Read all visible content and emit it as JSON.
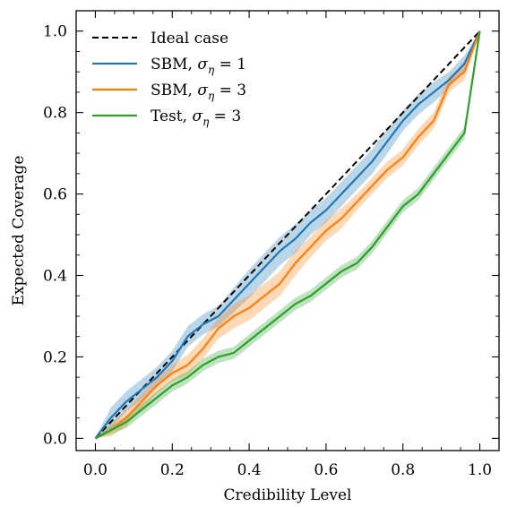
{
  "chart_data": {
    "type": "line",
    "title": "",
    "xlabel": "Credibility Level",
    "ylabel": "Expected Coverage",
    "xlim": [
      -0.05,
      1.05
    ],
    "ylim": [
      -0.03,
      1.05
    ],
    "xticks": [
      0.0,
      0.2,
      0.4,
      0.6,
      0.8,
      1.0
    ],
    "yticks": [
      0.0,
      0.2,
      0.4,
      0.6,
      0.8,
      1.0
    ],
    "xtick_labels": [
      "0.0",
      "0.2",
      "0.4",
      "0.6",
      "0.8",
      "1.0"
    ],
    "ytick_labels": [
      "0.0",
      "0.2",
      "0.4",
      "0.6",
      "0.8",
      "1.0"
    ],
    "grid": false,
    "legend_position": "top-left",
    "ideal": {
      "name": "Ideal case",
      "x": [
        0,
        1
      ],
      "y": [
        0,
        1
      ],
      "color": "#000000",
      "style": "dashed"
    },
    "series": [
      {
        "label_prefix": "SBM, ",
        "label_symbol": "σ",
        "label_sub": "η",
        "label_suffix": " = 1",
        "color": "#1f77b4",
        "x": [
          0,
          0.04,
          0.08,
          0.12,
          0.16,
          0.2,
          0.24,
          0.28,
          0.32,
          0.36,
          0.4,
          0.44,
          0.48,
          0.52,
          0.56,
          0.6,
          0.64,
          0.68,
          0.72,
          0.76,
          0.8,
          0.84,
          0.88,
          0.92,
          0.96,
          1.0
        ],
        "y": [
          0,
          0.05,
          0.09,
          0.12,
          0.15,
          0.19,
          0.25,
          0.28,
          0.3,
          0.34,
          0.38,
          0.42,
          0.46,
          0.49,
          0.53,
          0.56,
          0.6,
          0.64,
          0.68,
          0.73,
          0.78,
          0.82,
          0.85,
          0.88,
          0.92,
          1.0
        ],
        "band": [
          0,
          0.025,
          0.025,
          0.025,
          0.025,
          0.025,
          0.025,
          0.025,
          0.025,
          0.03,
          0.035,
          0.035,
          0.035,
          0.035,
          0.03,
          0.03,
          0.03,
          0.03,
          0.03,
          0.03,
          0.025,
          0.025,
          0.025,
          0.02,
          0.02,
          0
        ]
      },
      {
        "label_prefix": "SBM, ",
        "label_symbol": "σ",
        "label_sub": "η",
        "label_suffix": " = 3",
        "color": "#ff7f0e",
        "x": [
          0,
          0.04,
          0.08,
          0.12,
          0.16,
          0.2,
          0.24,
          0.28,
          0.32,
          0.36,
          0.4,
          0.44,
          0.48,
          0.52,
          0.56,
          0.6,
          0.64,
          0.68,
          0.72,
          0.76,
          0.8,
          0.84,
          0.88,
          0.92,
          0.96,
          1.0
        ],
        "y": [
          0,
          0.02,
          0.05,
          0.09,
          0.13,
          0.16,
          0.18,
          0.22,
          0.27,
          0.3,
          0.32,
          0.35,
          0.38,
          0.43,
          0.47,
          0.51,
          0.54,
          0.58,
          0.62,
          0.66,
          0.69,
          0.74,
          0.78,
          0.87,
          0.9,
          1.0
        ],
        "band": [
          0,
          0.015,
          0.02,
          0.02,
          0.02,
          0.02,
          0.025,
          0.025,
          0.025,
          0.03,
          0.03,
          0.03,
          0.03,
          0.03,
          0.025,
          0.025,
          0.025,
          0.02,
          0.02,
          0.02,
          0.02,
          0.02,
          0.02,
          0.02,
          0.02,
          0
        ]
      },
      {
        "label_prefix": "Test, ",
        "label_symbol": "σ",
        "label_sub": "η",
        "label_suffix": " = 3",
        "color": "#2ca02c",
        "x": [
          0,
          0.04,
          0.08,
          0.12,
          0.16,
          0.2,
          0.24,
          0.28,
          0.32,
          0.36,
          0.4,
          0.44,
          0.48,
          0.52,
          0.56,
          0.6,
          0.64,
          0.68,
          0.72,
          0.76,
          0.8,
          0.84,
          0.88,
          0.92,
          0.96,
          1.0
        ],
        "y": [
          0,
          0.02,
          0.04,
          0.07,
          0.1,
          0.13,
          0.15,
          0.18,
          0.2,
          0.21,
          0.24,
          0.27,
          0.3,
          0.33,
          0.35,
          0.38,
          0.41,
          0.43,
          0.47,
          0.52,
          0.57,
          0.6,
          0.65,
          0.7,
          0.75,
          1.0
        ],
        "band": [
          0,
          0.01,
          0.015,
          0.015,
          0.015,
          0.015,
          0.015,
          0.015,
          0.015,
          0.015,
          0.015,
          0.015,
          0.015,
          0.015,
          0.015,
          0.015,
          0.015,
          0.015,
          0.015,
          0.015,
          0.015,
          0.015,
          0.015,
          0.015,
          0.015,
          0
        ]
      }
    ]
  }
}
